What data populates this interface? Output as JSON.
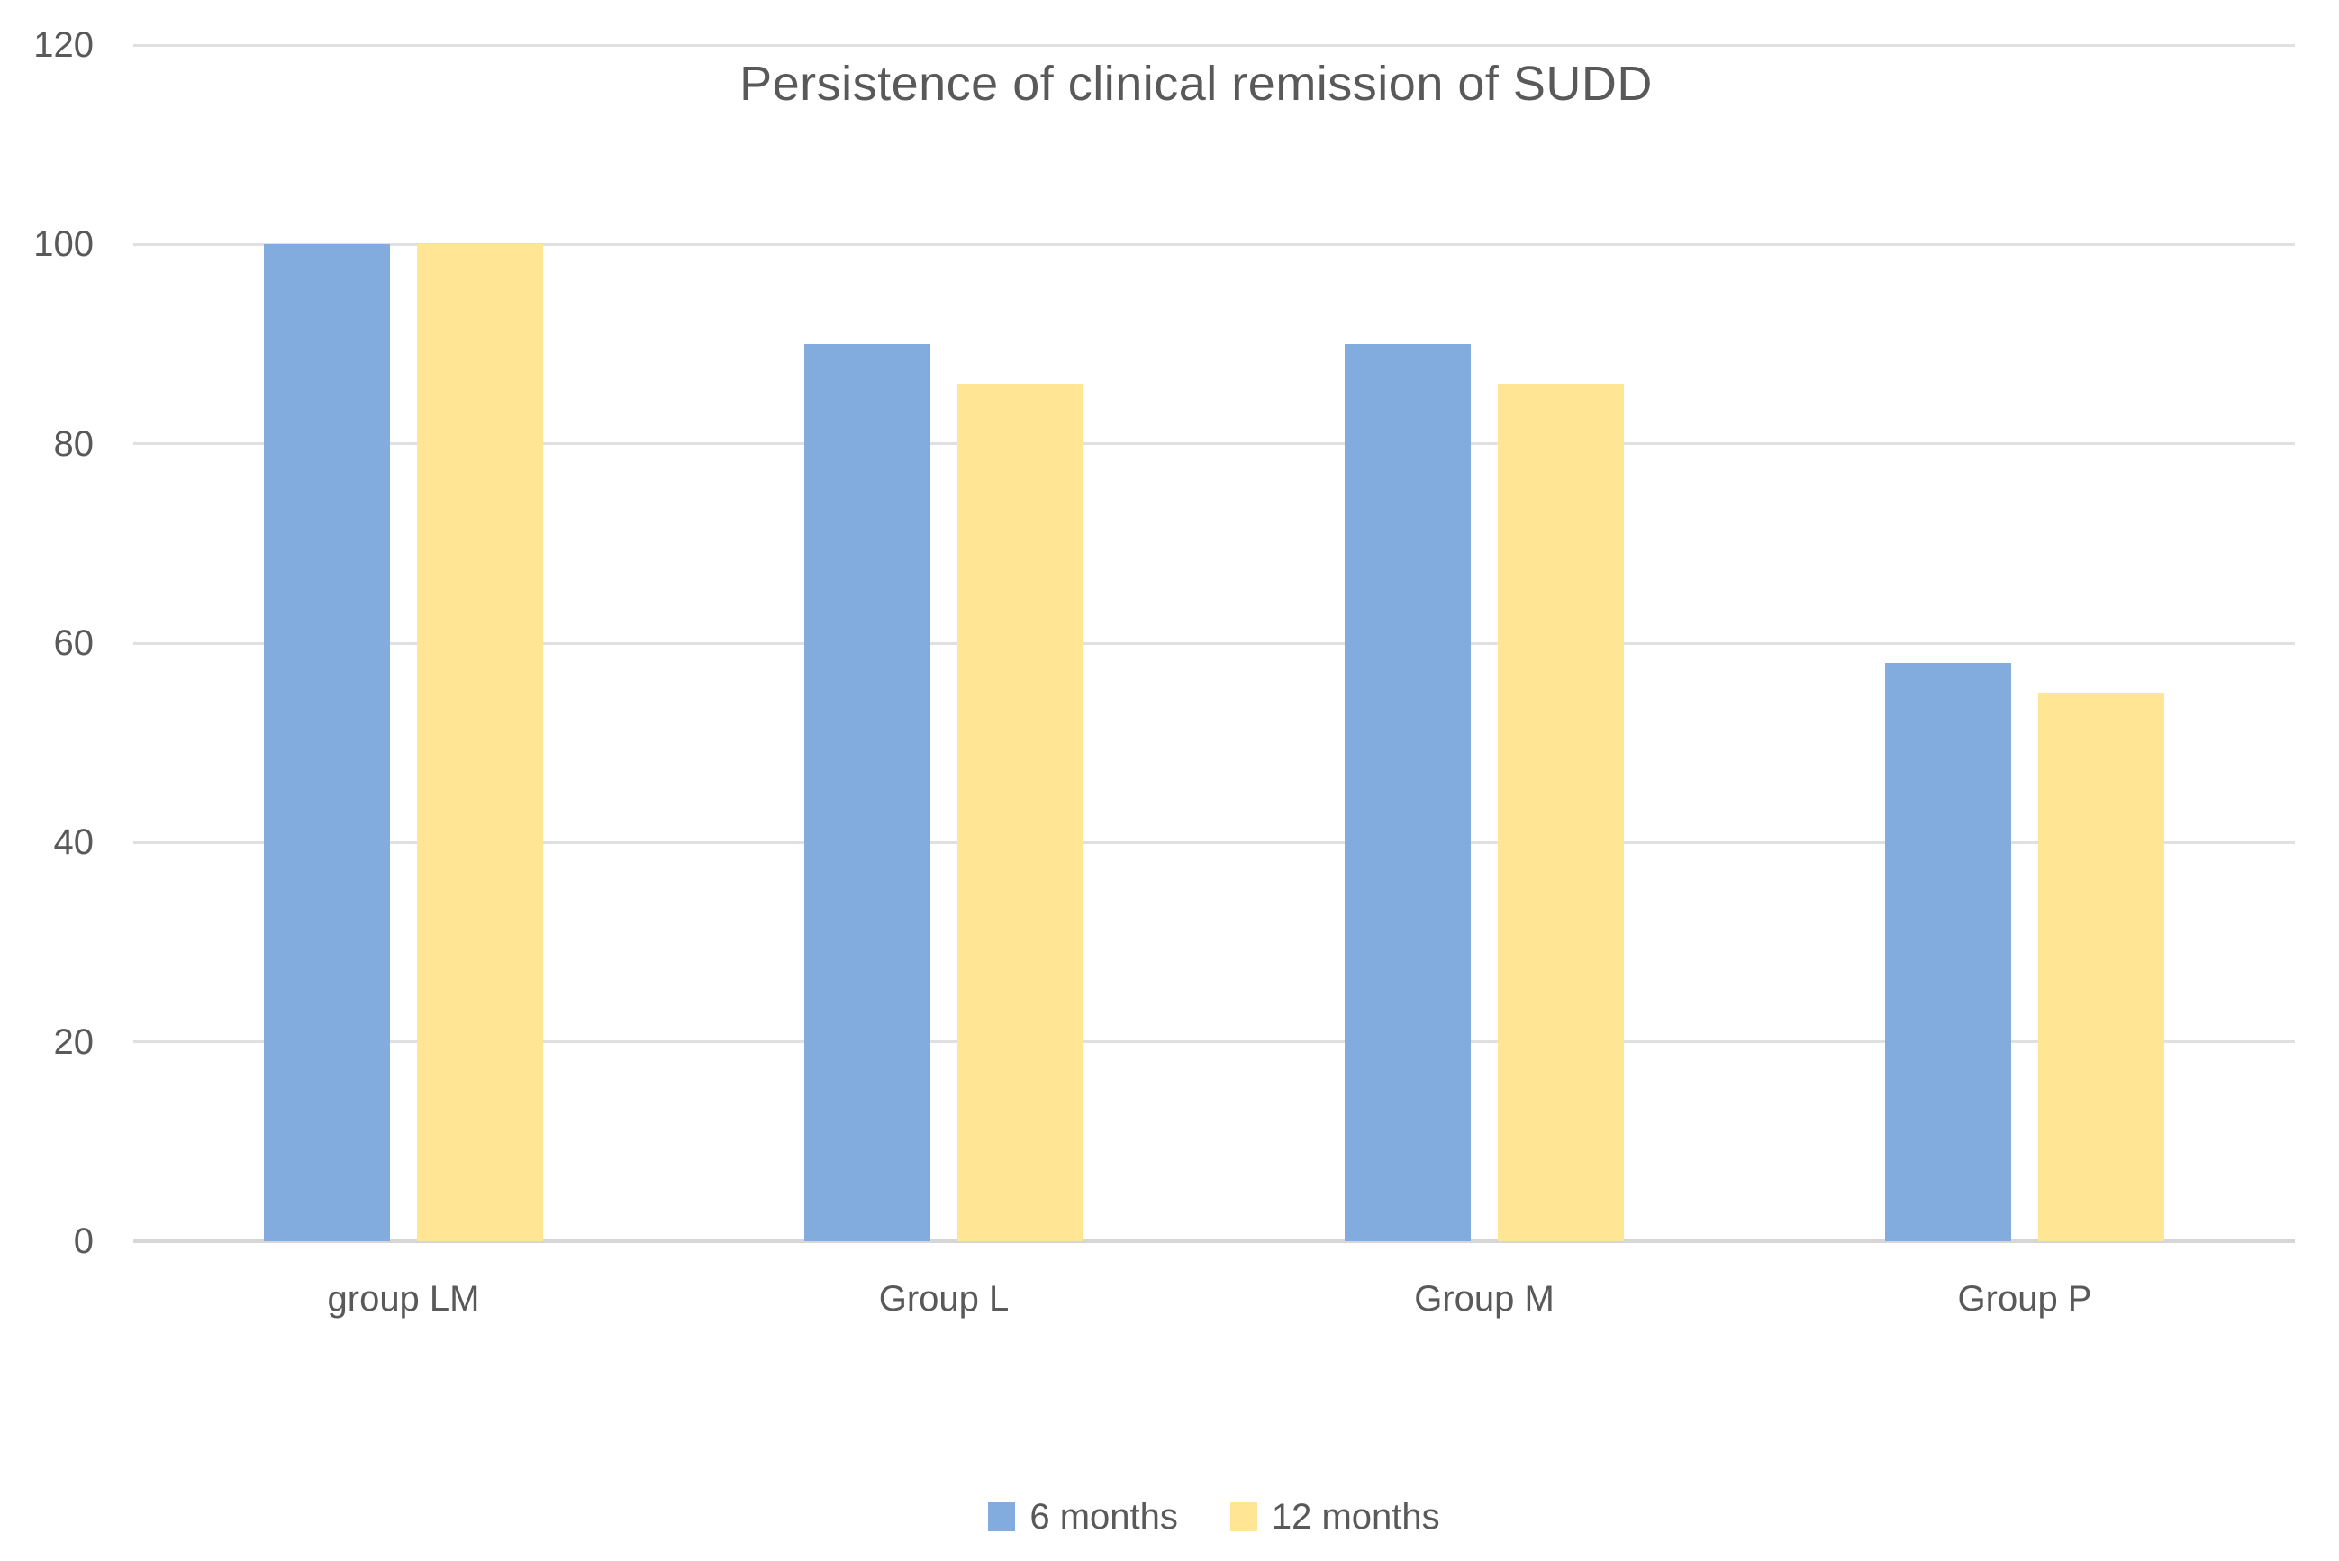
{
  "chart_data": {
    "type": "bar",
    "title": "Persistence of clinical remission of SUDD",
    "categories": [
      "group LM",
      "Group L",
      "Group M",
      "Group P"
    ],
    "series": [
      {
        "name": "6 months",
        "color": "#82ABDE",
        "values": [
          100,
          90,
          90,
          58
        ]
      },
      {
        "name": "12 months",
        "color": "#FFE594",
        "values": [
          100,
          86,
          86,
          55
        ]
      }
    ],
    "xlabel": "",
    "ylabel": "",
    "ylim": [
      0,
      120
    ],
    "y_ticks": [
      0,
      20,
      40,
      60,
      80,
      100,
      120
    ],
    "grid": "horizontal",
    "legend_position": "bottom",
    "colors": {
      "text": "#595959",
      "gridline": "#E0E0E0",
      "baseline": "#D6D6D6",
      "background": "#FFFFFF"
    }
  }
}
